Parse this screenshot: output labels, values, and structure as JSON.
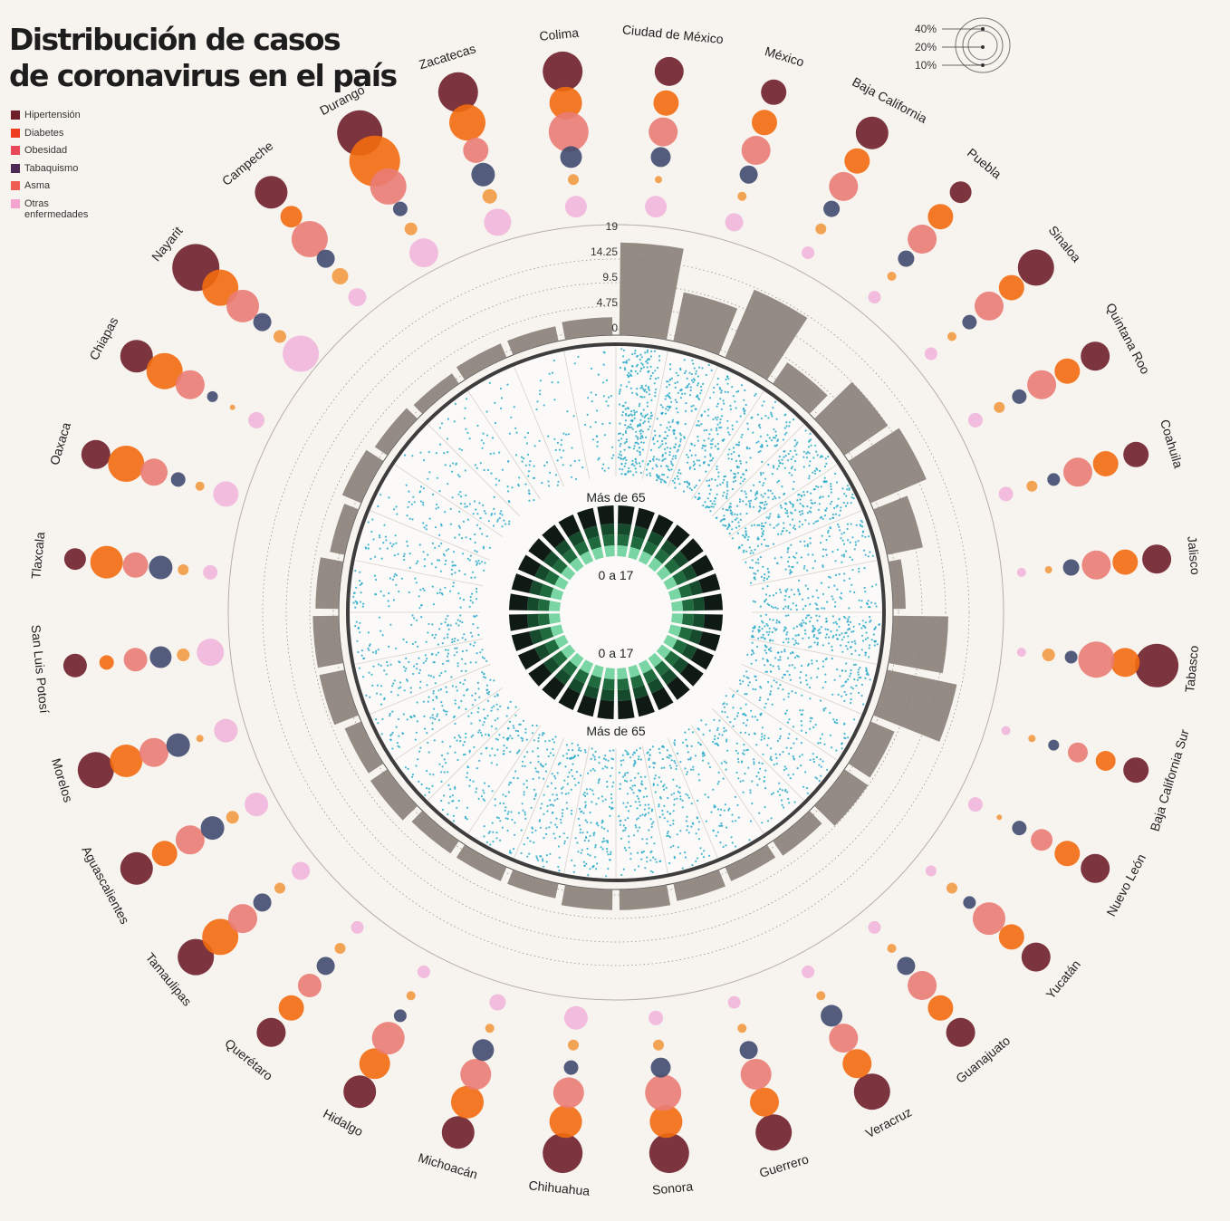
{
  "title": {
    "line1": "Distribución de casos",
    "line2": "de coronavirus en el país"
  },
  "legend": [
    {
      "label": "Hipertensión",
      "color": "#6e1f2a"
    },
    {
      "label": "Diabetes",
      "color": "#ee3c1c"
    },
    {
      "label": "Obesidad",
      "color": "#e8485a"
    },
    {
      "label": "Tabaquismo",
      "color": "#4d2a55"
    },
    {
      "label": "Asma",
      "color": "#ef5d53"
    },
    {
      "label": "Otras enfermedades",
      "color": "#f3a5cf"
    }
  ],
  "size_scale": {
    "labels": [
      "40%",
      "20%",
      "10%"
    ],
    "values": [
      40,
      20,
      10
    ]
  },
  "center_labels": {
    "outer_top": "Más de 65",
    "inner_top": "0 a 17",
    "inner_bottom": "0 a 17",
    "outer_bottom": "Más de 65"
  },
  "colors": {
    "bar": "#8a817b",
    "dots": "#2aa9c9",
    "ring_dark": "#101a14",
    "ring_mid": "#1f6b3e",
    "ring_light": "#79d5a4",
    "background": "#f7f4ef",
    "hipertension": "#6e1f2a",
    "diabetes": "#f26b10",
    "obesidad": "#ea7c76",
    "tabaquismo": "#404b6f",
    "asma": "#f29a43",
    "otras": "#f0b6da"
  },
  "chart_data": {
    "type": "radial-bubble",
    "series_names": [
      "Hipertensión",
      "Diabetes",
      "Obesidad",
      "Tabaquismo",
      "Asma",
      "Otras enfermedades"
    ],
    "bar_axis": {
      "ticks": [
        "19",
        "14.25",
        "9.5",
        "4.75",
        "0"
      ],
      "max": 19
    },
    "states": [
      {
        "name": "Ciudad de México",
        "bar": 16.0,
        "risk": [
          16,
          14,
          16,
          11,
          4,
          12
        ]
      },
      {
        "name": "México",
        "bar": 8.0,
        "risk": [
          14,
          14,
          16,
          10,
          5,
          10
        ]
      },
      {
        "name": "Baja California",
        "bar": 12.5,
        "risk": [
          18,
          14,
          16,
          9,
          6,
          7
        ]
      },
      {
        "name": "Puebla",
        "bar": 3.5,
        "risk": [
          12,
          14,
          16,
          9,
          5,
          7
        ]
      },
      {
        "name": "Sinaloa",
        "bar": 8.5,
        "risk": [
          20,
          14,
          16,
          8,
          5,
          7
        ]
      },
      {
        "name": "Quintana Roo",
        "bar": 10.0,
        "risk": [
          16,
          14,
          16,
          8,
          6,
          8
        ]
      },
      {
        "name": "Coahuila",
        "bar": 5.5,
        "risk": [
          14,
          14,
          16,
          7,
          6,
          8
        ]
      },
      {
        "name": "Jalisco",
        "bar": 1.0,
        "risk": [
          16,
          14,
          16,
          9,
          4,
          5
        ]
      },
      {
        "name": "Tabasco",
        "bar": 9.0,
        "risk": [
          24,
          16,
          20,
          7,
          7,
          5
        ]
      },
      {
        "name": "Baja California Sur",
        "bar": 12.0,
        "risk": [
          14,
          11,
          11,
          6,
          4,
          5
        ]
      },
      {
        "name": "Nuevo León",
        "bar": 3.5,
        "risk": [
          16,
          14,
          12,
          8,
          3,
          8
        ]
      },
      {
        "name": "Yucatán",
        "bar": 4.0,
        "risk": [
          16,
          14,
          18,
          7,
          6,
          6
        ]
      },
      {
        "name": "Guanajuato",
        "bar": 2.0,
        "risk": [
          16,
          14,
          16,
          10,
          5,
          7
        ]
      },
      {
        "name": "Veracruz",
        "bar": 1.5,
        "risk": [
          20,
          16,
          16,
          12,
          5,
          7
        ]
      },
      {
        "name": "Guerrero",
        "bar": 2.0,
        "risk": [
          20,
          16,
          17,
          10,
          5,
          7
        ]
      },
      {
        "name": "Sonora",
        "bar": 2.5,
        "risk": [
          22,
          18,
          20,
          11,
          6,
          8
        ]
      },
      {
        "name": "Chihuahua",
        "bar": 2.5,
        "risk": [
          22,
          18,
          17,
          8,
          6,
          13
        ]
      },
      {
        "name": "Michoacán",
        "bar": 1.5,
        "risk": [
          18,
          18,
          17,
          12,
          5,
          9
        ]
      },
      {
        "name": "Hidalgo",
        "bar": 1.5,
        "risk": [
          18,
          17,
          18,
          7,
          5,
          7
        ]
      },
      {
        "name": "Querétaro",
        "bar": 1.5,
        "risk": [
          16,
          14,
          13,
          10,
          6,
          7
        ]
      },
      {
        "name": "Tamaulipas",
        "bar": 2.5,
        "risk": [
          20,
          20,
          16,
          10,
          6,
          10
        ]
      },
      {
        "name": "Aguascalientes",
        "bar": 2.0,
        "risk": [
          18,
          14,
          16,
          13,
          7,
          13
        ]
      },
      {
        "name": "Morelos",
        "bar": 3.5,
        "risk": [
          20,
          18,
          16,
          13,
          4,
          13
        ]
      },
      {
        "name": "San Luis Potosí",
        "bar": 3.5,
        "risk": [
          13,
          8,
          13,
          12,
          7,
          15
        ]
      },
      {
        "name": "Tlaxcala",
        "bar": 3.0,
        "risk": [
          12,
          18,
          14,
          13,
          6,
          8
        ]
      },
      {
        "name": "Oaxaca",
        "bar": 1.5,
        "risk": [
          16,
          20,
          15,
          8,
          5,
          14
        ]
      },
      {
        "name": "Chiapas",
        "bar": 2.5,
        "risk": [
          18,
          20,
          16,
          6,
          3,
          9
        ]
      },
      {
        "name": "Nayarit",
        "bar": 1.5,
        "risk": [
          26,
          20,
          18,
          10,
          7,
          20
        ]
      },
      {
        "name": "Campeche",
        "bar": 1.0,
        "risk": [
          18,
          12,
          20,
          10,
          9,
          10
        ]
      },
      {
        "name": "Durango",
        "bar": 1.5,
        "risk": [
          25,
          28,
          20,
          8,
          7,
          16
        ]
      },
      {
        "name": "Zacatecas",
        "bar": 1.5,
        "risk": [
          22,
          20,
          14,
          13,
          8,
          15
        ]
      },
      {
        "name": "Colima",
        "bar": 2.0,
        "risk": [
          22,
          18,
          22,
          12,
          6,
          12
        ]
      }
    ],
    "dot_density": [
      240,
      200,
      150,
      150,
      170,
      180,
      120,
      100,
      200,
      130,
      90,
      100,
      90,
      80,
      120,
      130,
      130,
      120,
      100,
      90,
      90,
      100,
      100,
      80,
      70,
      80,
      60,
      60,
      50,
      40,
      35,
      40
    ],
    "age_ring_groups": [
      "0 a 17",
      "Más de 65"
    ]
  }
}
